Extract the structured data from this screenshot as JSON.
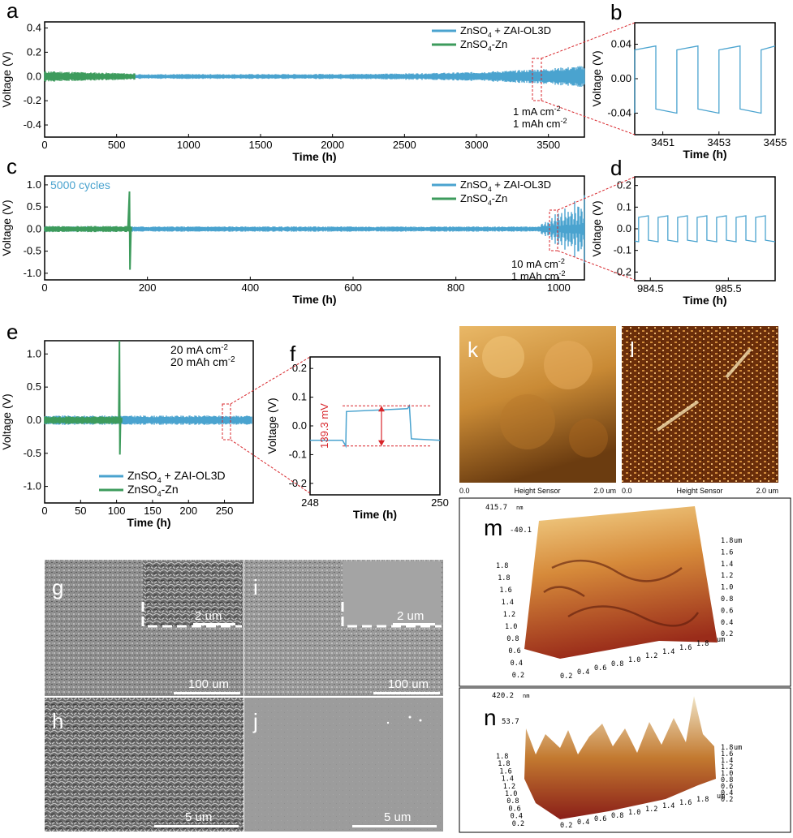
{
  "colors": {
    "blue": "#4aa3cf",
    "green": "#3d9b5c",
    "red": "#d8262b",
    "frame": "#000000"
  },
  "legend": {
    "series1": "ZnSO",
    "series1_sub": "4",
    "series1_rest": " + ZAI-OL3D",
    "series2": "ZnSO",
    "series2_sub": "4",
    "series2_rest": "-Zn"
  },
  "chart_data": [
    {
      "panel": "a",
      "type": "line",
      "xlabel": "Time (h)",
      "ylabel": "Voltage (V)",
      "xlim": [
        0,
        3750
      ],
      "ylim": [
        -0.5,
        0.45
      ],
      "xticks": [
        0,
        500,
        1000,
        1500,
        2000,
        2500,
        3000,
        3500
      ],
      "yticks": [
        -0.4,
        -0.2,
        0.0,
        0.2,
        0.4
      ],
      "ytick_labels": [
        "-0.4",
        "-0.2",
        "0.0",
        "0.2",
        "0.4"
      ],
      "annotation": [
        "1 mA cm",
        "-2",
        "1 mAh cm",
        "-2"
      ],
      "series": [
        {
          "name": "ZnSO4 + ZAI-OL3D",
          "x_range": [
            0,
            3750
          ],
          "amplitude_start": 0.02,
          "amplitude_end": 0.09
        },
        {
          "name": "ZnSO4-Zn",
          "x_range": [
            0,
            630
          ],
          "amplitude": 0.045
        }
      ]
    },
    {
      "panel": "b",
      "type": "line",
      "xlabel": "Time (h)",
      "ylabel": "Voltage (V)",
      "xlim": [
        3450,
        3455
      ],
      "ylim": [
        -0.065,
        0.065
      ],
      "xticks": [
        3451,
        3453,
        3455
      ],
      "yticks": [
        -0.04,
        0.0,
        0.04
      ],
      "ytick_labels": [
        "-0.04",
        "0.00",
        "0.04"
      ],
      "series": [
        {
          "name": "ZnSO4 + ZAI-OL3D",
          "square_wave": {
            "high": 0.038,
            "low": -0.04,
            "period": 1.5,
            "start": 3450
          }
        }
      ]
    },
    {
      "panel": "c",
      "type": "line",
      "xlabel": "Time (h)",
      "ylabel": "Voltage (V)",
      "xlim": [
        0,
        1050
      ],
      "ylim": [
        -1.15,
        1.2
      ],
      "xticks": [
        0,
        200,
        400,
        600,
        800,
        1000
      ],
      "yticks": [
        -1.0,
        -0.5,
        0.0,
        0.5,
        1.0
      ],
      "ytick_labels": [
        "-1.0",
        "-0.5",
        "0.0",
        "0.5",
        "1.0"
      ],
      "note": "5000 cycles",
      "annotation": [
        "10 mA cm",
        "-2",
        "1 mAh cm",
        "-2"
      ],
      "series": [
        {
          "name": "ZnSO4 + ZAI-OL3D",
          "x_range": [
            0,
            1050
          ],
          "amplitude": 0.06
        },
        {
          "name": "ZnSO4-Zn",
          "x_range": [
            0,
            170
          ],
          "amplitude": 0.07,
          "spike": {
            "x": 165,
            "max": 0.85,
            "min": -0.92
          }
        }
      ]
    },
    {
      "panel": "d",
      "type": "line",
      "xlabel": "Time (h)",
      "ylabel": "Voltage (V)",
      "xlim": [
        984.3,
        986.1
      ],
      "ylim": [
        -0.24,
        0.24
      ],
      "xticks": [
        984.5,
        985.5
      ],
      "yticks": [
        -0.2,
        -0.1,
        0.0,
        0.1,
        0.2
      ],
      "ytick_labels": [
        "-0.2",
        "-0.1",
        "0.0",
        "0.1",
        "0.2"
      ],
      "series": [
        {
          "name": "ZnSO4 + ZAI-OL3D",
          "square_wave": {
            "high": 0.06,
            "low": -0.06,
            "period": 0.25,
            "start": 984.35
          }
        }
      ]
    },
    {
      "panel": "e",
      "type": "line",
      "xlabel": "Time (h)",
      "ylabel": "Voltage (V)",
      "xlim": [
        0,
        290
      ],
      "ylim": [
        -1.25,
        1.2
      ],
      "xticks": [
        0,
        50,
        100,
        150,
        200,
        250
      ],
      "yticks": [
        -1.0,
        -0.5,
        0.0,
        0.5,
        1.0
      ],
      "ytick_labels": [
        "-1.0",
        "-0.5",
        "0.0",
        "0.5",
        "1.0"
      ],
      "annotation": [
        "20 mA cm",
        "-2",
        "20 mAh cm",
        "-2"
      ],
      "series": [
        {
          "name": "ZnSO4 + ZAI-OL3D",
          "x_range": [
            0,
            288
          ],
          "amplitude": 0.07
        },
        {
          "name": "ZnSO4-Zn",
          "x_range": [
            0,
            108
          ],
          "amplitude": 0.06,
          "spike": {
            "x": 104,
            "max": 1.2,
            "min": -0.52
          }
        }
      ]
    },
    {
      "panel": "f",
      "type": "line",
      "xlabel": "Time (h)",
      "ylabel": "Voltage (V)",
      "xlim": [
        248,
        250
      ],
      "ylim": [
        -0.24,
        0.24
      ],
      "xticks": [
        248,
        250
      ],
      "yticks": [
        -0.2,
        -0.1,
        0.0,
        0.1,
        0.2
      ],
      "ytick_labels": [
        "-0.2",
        "-0.1",
        "0.0",
        "0.1",
        "0.2"
      ],
      "annotation": "139.3 mV",
      "series": [
        {
          "name": "ZnSO4 + ZAI-OL3D",
          "points": [
            [
              248,
              -0.05
            ],
            [
              248.5,
              -0.05
            ],
            [
              248.55,
              -0.07
            ],
            [
              248.56,
              0.05
            ],
            [
              249.5,
              0.06
            ],
            [
              249.53,
              0.07
            ],
            [
              249.56,
              -0.045
            ],
            [
              250,
              -0.05
            ]
          ]
        }
      ]
    }
  ],
  "sem": {
    "g": {
      "letter": "g",
      "scale_main": "100 um",
      "scale_inset": "2 um"
    },
    "i": {
      "letter": "i",
      "scale_main": "100 um",
      "scale_inset": "2 um"
    },
    "h": {
      "letter": "h",
      "scale_main": "5 um"
    },
    "j": {
      "letter": "j",
      "scale_main": "5 um"
    }
  },
  "afm": {
    "k": {
      "letter": "k",
      "left": "0.0",
      "center": "Height Sensor",
      "right": "2.0 um"
    },
    "l": {
      "letter": "l",
      "left": "0.0",
      "center": "Height Sensor",
      "right": "2.0 um"
    },
    "m": {
      "letter": "m",
      "zmax": "415.7",
      "zmax_unit": "nm",
      "zmin": "-40.1",
      "left_ticks": [
        "1.8",
        "1.8",
        "1.6",
        "1.4",
        "1.2",
        "1.0",
        "0.8",
        "0.6",
        "0.4",
        "0.2"
      ],
      "right_ticks": [
        "1.8",
        "1.6",
        "1.4",
        "1.2",
        "1.0",
        "0.8",
        "0.6",
        "0.4",
        "0.2"
      ],
      "right_unit": "um",
      "bottom_ticks": [
        "0.2",
        "0.4",
        "0.6",
        "0.8",
        "1.0",
        "1.2",
        "1.4",
        "1.6",
        "1.8"
      ],
      "bottom_unit": "um"
    },
    "n": {
      "letter": "n",
      "zmax": "420.2",
      "zmax_unit": "nm",
      "zmin": "53.7",
      "left_ticks": [
        "1.8",
        "1.8",
        "1.6",
        "1.4",
        "1.2",
        "1.0",
        "0.8",
        "0.6",
        "0.4",
        "0.2"
      ],
      "right_ticks": [
        "1.8",
        "1.6",
        "1.4",
        "1.2",
        "1.0",
        "0.8",
        "0.6",
        "0.4",
        "0.2"
      ],
      "right_unit": "um",
      "bottom_ticks": [
        "0.2",
        "0.4",
        "0.6",
        "0.8",
        "1.0",
        "1.2",
        "1.4",
        "1.6",
        "1.8"
      ],
      "bottom_unit": "um"
    }
  },
  "panel_letters": {
    "a": "a",
    "b": "b",
    "c": "c",
    "d": "d",
    "e": "e",
    "f": "f"
  }
}
